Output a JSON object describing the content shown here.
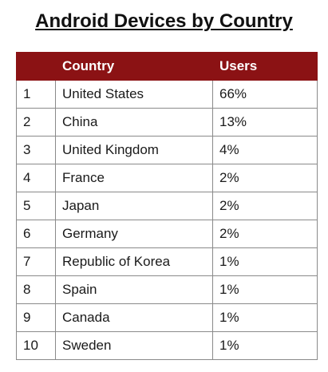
{
  "title": "Android Devices by Country",
  "chart_data": {
    "type": "table",
    "title": "Android Devices by Country",
    "columns": [
      "",
      "Country",
      "Users"
    ],
    "rows": [
      [
        "1",
        "United States",
        "66%"
      ],
      [
        "2",
        "China",
        "13%"
      ],
      [
        "3",
        "United Kingdom",
        "4%"
      ],
      [
        "4",
        "France",
        "2%"
      ],
      [
        "5",
        "Japan",
        "2%"
      ],
      [
        "6",
        "Germany",
        "2%"
      ],
      [
        "7",
        "Republic of Korea",
        "1%"
      ],
      [
        "8",
        "Spain",
        "1%"
      ],
      [
        "9",
        "Canada",
        "1%"
      ],
      [
        "10",
        "Sweden",
        "1%"
      ]
    ]
  },
  "colors": {
    "header_bg": "#8b1214",
    "header_text": "#ffffff",
    "border": "#8a8a8a"
  }
}
